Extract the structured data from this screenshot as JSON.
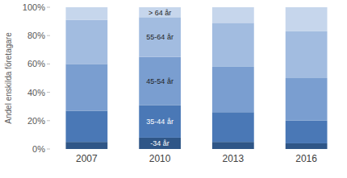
{
  "chart_data": {
    "type": "bar",
    "stacked": true,
    "grid": false,
    "y_label": "Andel enskilda företagare",
    "categories": [
      "2007",
      "2010",
      "2013",
      "2016"
    ],
    "series": [
      {
        "name": "-34 år",
        "color": "#2f5687",
        "values": [
          5,
          8,
          5,
          4
        ]
      },
      {
        "name": "35-44 år",
        "color": "#4a78b6",
        "values": [
          22,
          23,
          21,
          16
        ]
      },
      {
        "name": "45-54 år",
        "color": "#7a9ed0",
        "values": [
          33,
          34,
          32,
          30
        ]
      },
      {
        "name": "55-64 år",
        "color": "#a2bce0",
        "values": [
          31,
          28,
          31,
          33
        ]
      },
      {
        "name": "> 64 år",
        "color": "#c6d6ec",
        "values": [
          9,
          7,
          11,
          17
        ]
      }
    ],
    "ylim": [
      0,
      100
    ],
    "yticks": [
      {
        "value": 0,
        "label": "0%"
      },
      {
        "value": 20,
        "label": "20%"
      },
      {
        "value": 40,
        "label": "40%"
      },
      {
        "value": 60,
        "label": "60%"
      },
      {
        "value": 80,
        "label": "80%"
      },
      {
        "value": 100,
        "label": "100%"
      }
    ]
  }
}
